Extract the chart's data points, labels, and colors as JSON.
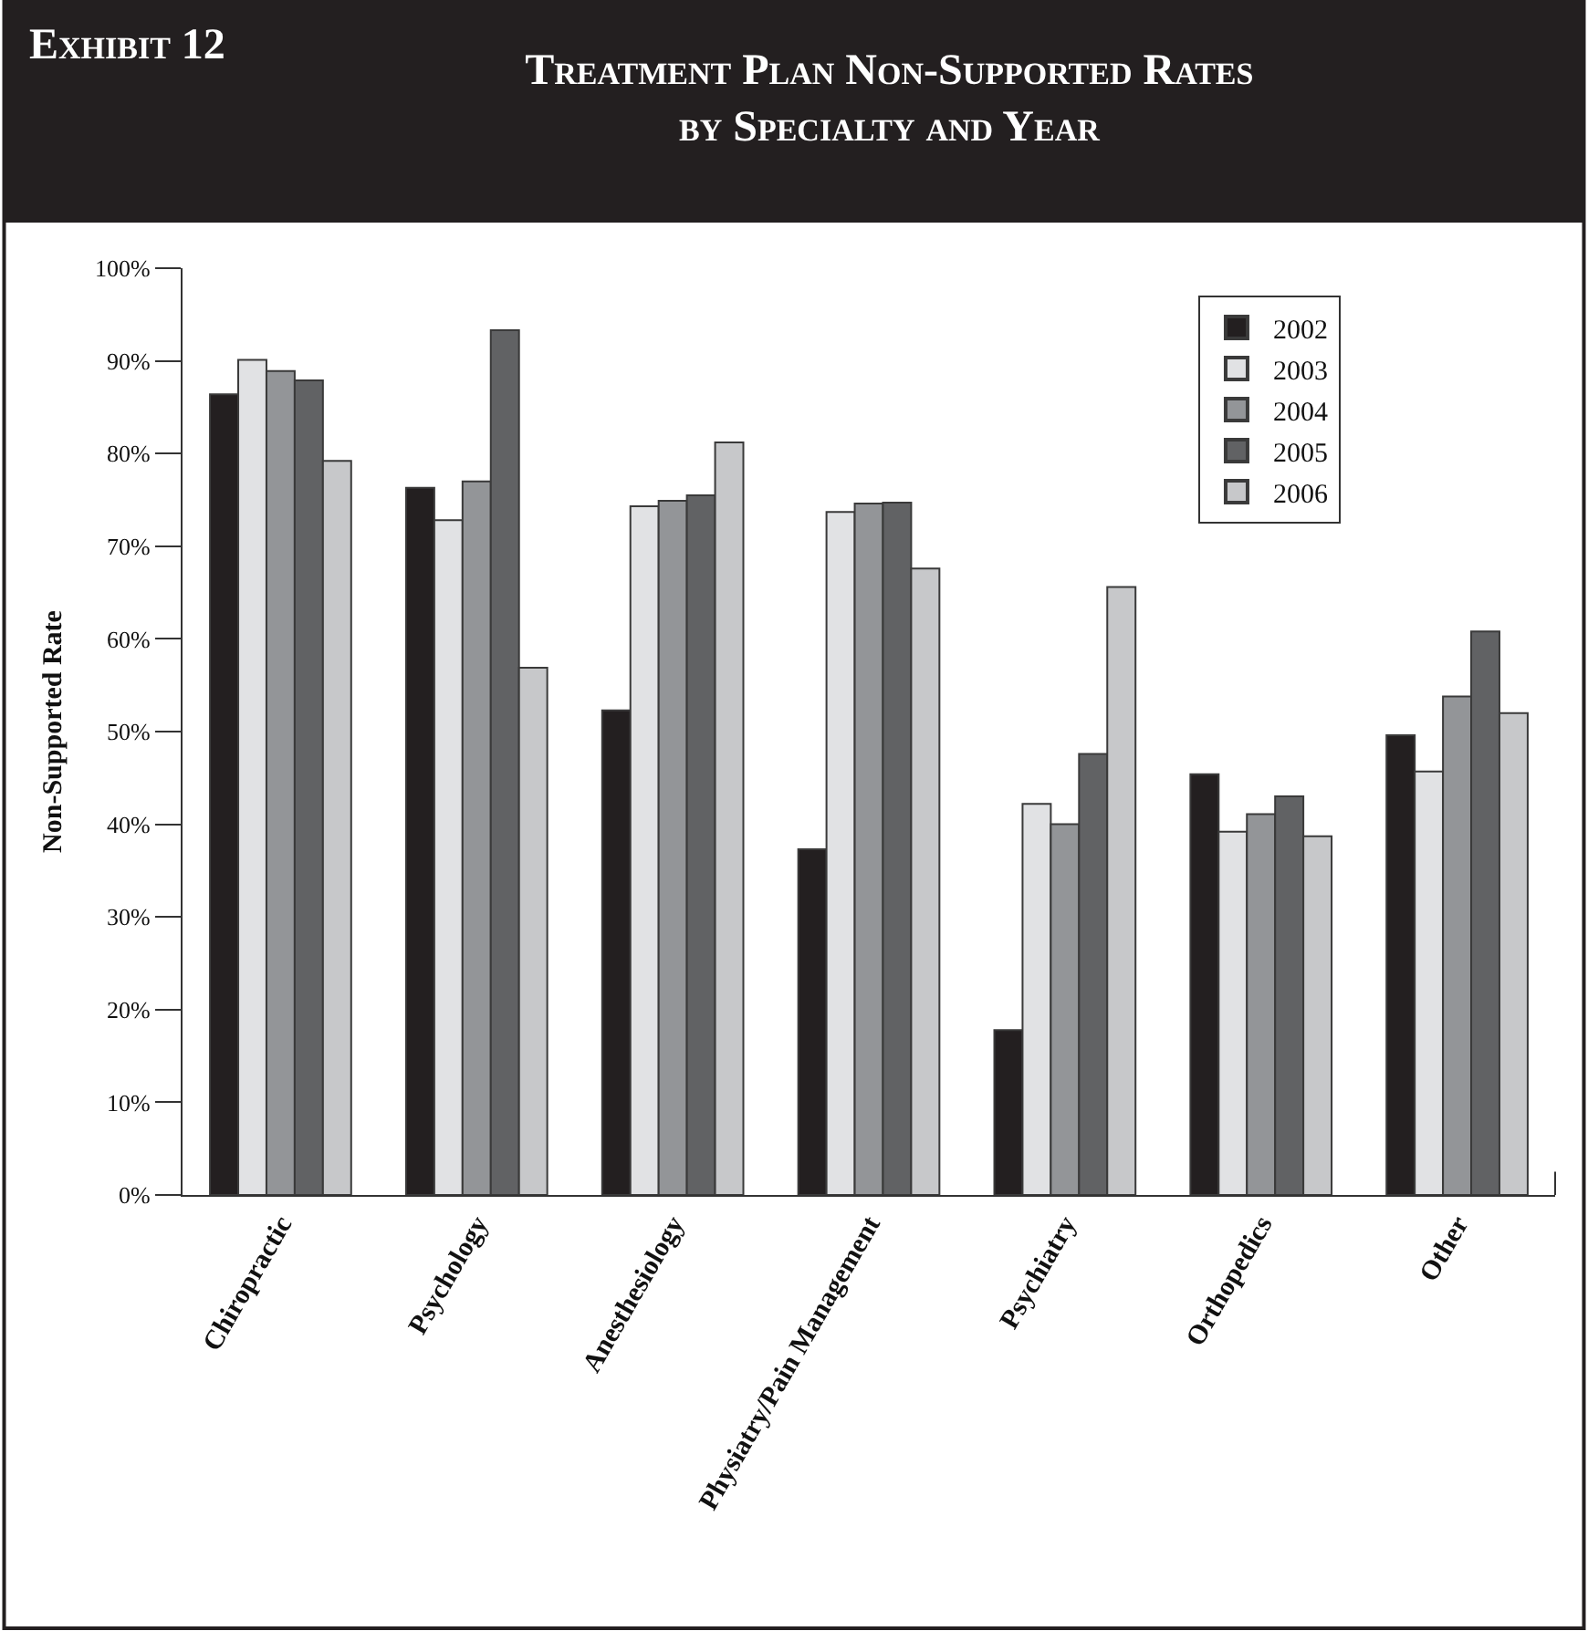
{
  "chart_data": {
    "type": "bar",
    "title": "Treatment Plan Non-Supported Rates by Specialty and Year",
    "ylabel": "Non-Supported Rate",
    "annotations": [
      "Exhibit 12"
    ],
    "categories": [
      "Chiropractic",
      "Psychology",
      "Anesthesiology",
      "Physiatry/Pain Management",
      "Psychiatry",
      "Orthopedics",
      "Other"
    ],
    "series": [
      {
        "name": "2002",
        "color": "#231f20",
        "values": [
          86.4,
          76.3,
          52.3,
          37.3,
          17.8,
          45.4,
          49.6
        ]
      },
      {
        "name": "2003",
        "color": "#e1e2e4",
        "values": [
          90.1,
          72.8,
          74.3,
          73.7,
          42.2,
          39.2,
          45.7
        ]
      },
      {
        "name": "2004",
        "color": "#939598",
        "values": [
          88.9,
          77,
          74.9,
          74.6,
          40,
          41.1,
          53.8
        ]
      },
      {
        "name": "2005",
        "color": "#616264",
        "values": [
          87.9,
          93.3,
          75.5,
          74.7,
          47.6,
          43,
          60.8
        ]
      },
      {
        "name": "2006",
        "color": "#c7c8ca",
        "values": [
          79.2,
          56.9,
          81.2,
          67.6,
          65.6,
          38.7,
          52
        ]
      }
    ],
    "ylim": [
      0,
      100
    ],
    "yticks": [
      {
        "value": 0,
        "label": "0%"
      },
      {
        "value": 10,
        "label": "10%"
      },
      {
        "value": 20,
        "label": "20%"
      },
      {
        "value": 30,
        "label": "30%"
      },
      {
        "value": 40,
        "label": "40%"
      },
      {
        "value": 50,
        "label": "50%"
      },
      {
        "value": 60,
        "label": "60%"
      },
      {
        "value": 70,
        "label": "70%"
      },
      {
        "value": 80,
        "label": "80%"
      },
      {
        "value": 90,
        "label": "90%"
      },
      {
        "value": 100,
        "label": "100%"
      }
    ],
    "grid": false,
    "legend": "top right"
  }
}
